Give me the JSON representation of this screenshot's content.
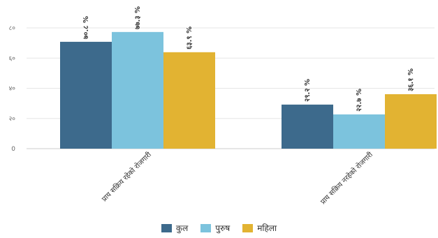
{
  "chart_data": {
    "type": "bar",
    "categories": [
      "प्राय सक्रिय रहेको रोजगारी",
      "प्राय सक्रिय नरहेको रोजगारी"
    ],
    "series": [
      {
        "name": "कुल",
        "values": [
          70.8,
          29.2
        ],
        "labels": [
          "७०.८ %",
          "२९.२ %"
        ],
        "color": "#3d6a8c"
      },
      {
        "name": "पुरुष",
        "values": [
          77.3,
          22.7
        ],
        "labels": [
          "७७.३ %",
          "२२.७ %"
        ],
        "color": "#7cc3dd"
      },
      {
        "name": "महिला",
        "values": [
          63.9,
          36.1
        ],
        "labels": [
          "६३.९ %",
          "३६.१ %"
        ],
        "color": "#e2b332"
      }
    ],
    "y_ticks": [
      "0",
      "२०",
      "४०",
      "६०",
      "८०"
    ],
    "ylim": [
      0,
      80
    ],
    "grid": true,
    "legend_position": "bottom"
  }
}
